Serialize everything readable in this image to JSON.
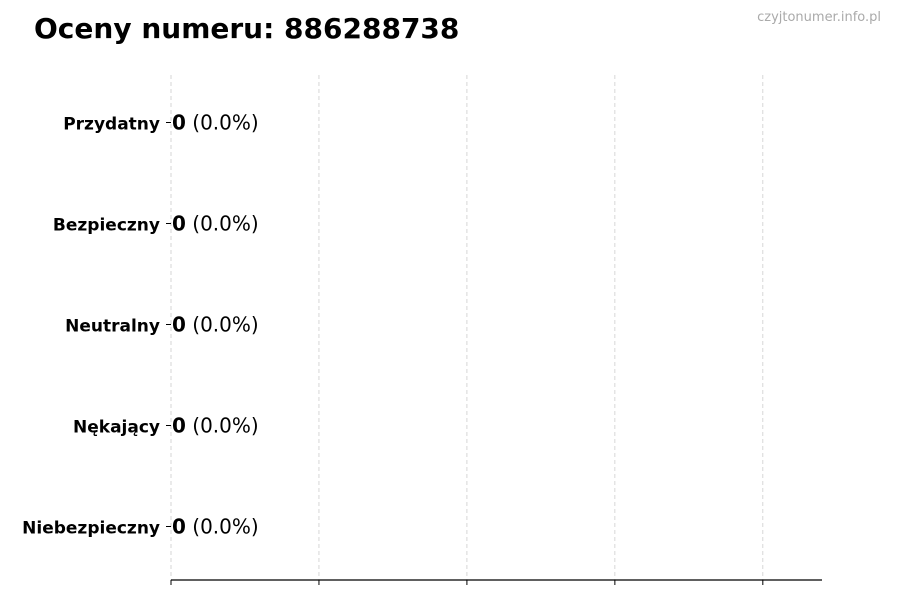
{
  "chart_data": {
    "type": "bar",
    "orientation": "horizontal",
    "title": "Oceny numeru: 886288738",
    "watermark": "czyjtonumer.info.pl",
    "categories": [
      "Przydatny",
      "Bezpieczny",
      "Neutralny",
      "Nękający",
      "Niebezpieczny"
    ],
    "values": [
      0,
      0,
      0,
      0,
      0
    ],
    "labels": [
      {
        "count": "0",
        "pct": "(0.0%)"
      },
      {
        "count": "0",
        "pct": "(0.0%)"
      },
      {
        "count": "0",
        "pct": "(0.0%)"
      },
      {
        "count": "0",
        "pct": "(0.0%)"
      },
      {
        "count": "0",
        "pct": "(0.0%)"
      }
    ],
    "xlim": [
      0,
      4.4
    ],
    "xticks": [
      0,
      1,
      2,
      3,
      4
    ],
    "xtick_labels_shown": false,
    "grid": "x dashed",
    "bar_edge_color": "#333333",
    "grid_color": "#cccccc"
  }
}
